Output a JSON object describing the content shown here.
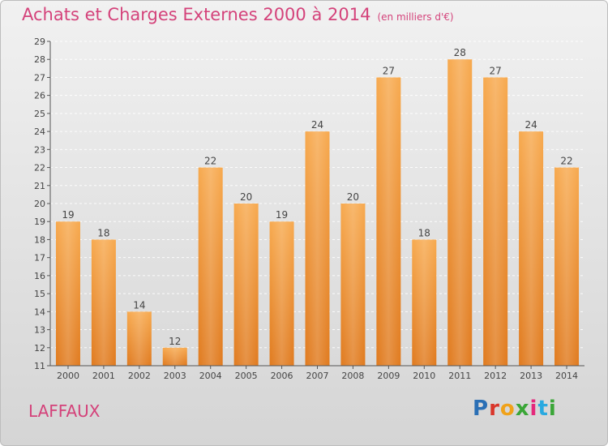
{
  "chart_data": {
    "type": "bar",
    "title": "Achats et Charges Externes 2000 à 2014",
    "subtitle": "(en milliers d'€)",
    "categories": [
      "2000",
      "2001",
      "2002",
      "2003",
      "2004",
      "2005",
      "2006",
      "2007",
      "2008",
      "2009",
      "2010",
      "2011",
      "2012",
      "2013",
      "2014"
    ],
    "values": [
      19,
      18,
      14,
      12,
      22,
      20,
      19,
      24,
      20,
      27,
      18,
      28,
      27,
      24,
      22
    ],
    "ylim": [
      11,
      29
    ],
    "yticks": [
      11,
      12,
      13,
      14,
      15,
      16,
      17,
      18,
      19,
      20,
      21,
      22,
      23,
      24,
      25,
      26,
      27,
      28,
      29
    ],
    "grid": true,
    "xlabel": "",
    "ylabel": "",
    "colors": {
      "bar_top": "#f7a94e",
      "bar_bottom": "#e07a1e",
      "title": "#d4427a"
    }
  },
  "place_name": "LAFFAUX",
  "logo": "Proxiti"
}
